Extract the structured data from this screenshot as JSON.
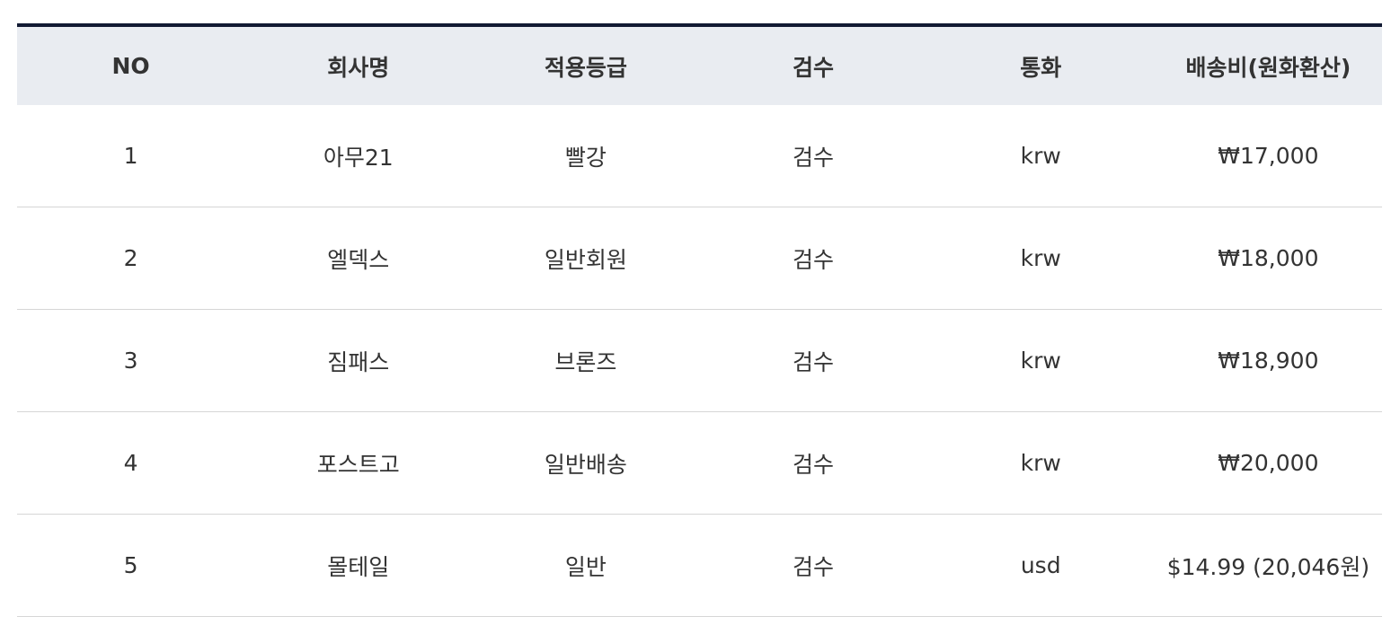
{
  "table": {
    "headers": [
      "NO",
      "회사명",
      "적용등급",
      "검수",
      "통화",
      "배송비(원화환산)"
    ],
    "rows": [
      [
        "1",
        "아무21",
        "빨강",
        "검수",
        "krw",
        "₩17,000"
      ],
      [
        "2",
        "엘덱스",
        "일반회원",
        "검수",
        "krw",
        "₩18,000"
      ],
      [
        "3",
        "짐패스",
        "브론즈",
        "검수",
        "krw",
        "₩18,900"
      ],
      [
        "4",
        "포스트고",
        "일반배송",
        "검수",
        "krw",
        "₩20,000"
      ],
      [
        "5",
        "몰테일",
        "일반",
        "검수",
        "usd",
        "$14.99 (20,046원)"
      ]
    ]
  },
  "colors": {
    "header_border": "#111a33",
    "header_bg": "#e9ecf1",
    "row_border": "#d6d6d6"
  }
}
